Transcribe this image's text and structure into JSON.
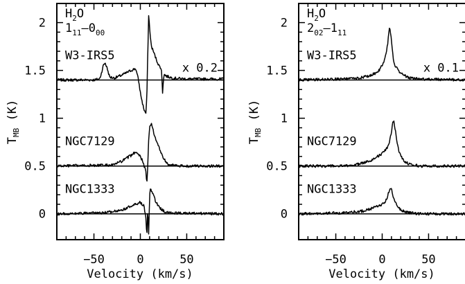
{
  "chart_data": [
    {
      "type": "line",
      "panel": "left",
      "molecule": {
        "main": "H",
        "sub": "2",
        "rest": "O"
      },
      "transition": {
        "j1": "1",
        "j1sub": "11",
        "dash": "–",
        "j2": "0",
        "j2sub": "00"
      },
      "xlabel": "Velocity (km/s)",
      "ylabel": {
        "main": "T",
        "sub": "MB",
        "unit": " (K)"
      },
      "xlim": [
        -90,
        90
      ],
      "ylim": [
        -0.27,
        2.2
      ],
      "xticks": [
        -50,
        0,
        50
      ],
      "xtick_labels": [
        "−50",
        "0",
        "50"
      ],
      "yticks": [
        0,
        0.5,
        1,
        1.5,
        2
      ],
      "ytick_labels": [
        "0",
        "0.5",
        "1",
        "1.5",
        "2"
      ],
      "series": [
        {
          "name": "W3-IRS5",
          "baseline": 1.4,
          "scale_label": "x 0.2",
          "x": [
            -90,
            -50,
            -44,
            -42,
            -40,
            -38,
            -36,
            -33,
            -28,
            -20,
            -10,
            -5,
            -2,
            0,
            2,
            4,
            6,
            7,
            8,
            9,
            10,
            11,
            12,
            14,
            17,
            20,
            22,
            23,
            24,
            25,
            26,
            28,
            35,
            50,
            90
          ],
          "y": [
            1.4,
            1.4,
            1.41,
            1.47,
            1.55,
            1.58,
            1.53,
            1.43,
            1.42,
            1.45,
            1.5,
            1.52,
            1.4,
            1.27,
            1.17,
            1.09,
            1.05,
            1.2,
            1.65,
            2.07,
            1.95,
            1.82,
            1.75,
            1.7,
            1.62,
            1.55,
            1.53,
            1.48,
            1.27,
            1.42,
            1.46,
            1.44,
            1.42,
            1.41,
            1.41
          ]
        },
        {
          "name": "NGC7129",
          "baseline": 0.5,
          "x": [
            -90,
            -30,
            -20,
            -10,
            -5,
            -2,
            0,
            2,
            4,
            6,
            7,
            8,
            9,
            10,
            12,
            14,
            16,
            20,
            25,
            30,
            40,
            90
          ],
          "y": [
            0.5,
            0.51,
            0.55,
            0.61,
            0.65,
            0.63,
            0.6,
            0.56,
            0.5,
            0.45,
            0.3,
            0.5,
            0.78,
            0.9,
            0.95,
            0.87,
            0.79,
            0.7,
            0.58,
            0.52,
            0.5,
            0.5
          ]
        },
        {
          "name": "NGC1333",
          "baseline": 0.0,
          "x": [
            -90,
            -40,
            -20,
            -10,
            -5,
            0,
            4,
            6,
            7,
            8,
            9,
            10,
            11,
            12,
            14,
            16,
            20,
            25,
            30,
            90
          ],
          "y": [
            0.0,
            0.01,
            0.04,
            0.08,
            0.1,
            0.12,
            0.08,
            -0.05,
            -0.25,
            0.05,
            -0.2,
            0.2,
            0.27,
            0.24,
            0.2,
            0.14,
            0.07,
            0.03,
            0.01,
            0.0
          ]
        }
      ]
    },
    {
      "type": "line",
      "panel": "right",
      "molecule": {
        "main": "H",
        "sub": "2",
        "rest": "O"
      },
      "transition": {
        "j1": "2",
        "j1sub": "02",
        "dash": "–",
        "j2": "1",
        "j2sub": "11"
      },
      "xlabel": "Velocity (km/s)",
      "ylabel": {
        "main": "T",
        "sub": "MB",
        "unit": " (K)"
      },
      "xlim": [
        -90,
        90
      ],
      "ylim": [
        -0.27,
        2.2
      ],
      "xticks": [
        -50,
        0,
        50
      ],
      "xtick_labels": [
        "−50",
        "0",
        "50"
      ],
      "yticks": [
        0,
        0.5,
        1,
        1.5,
        2
      ],
      "ytick_labels": [
        "0",
        "0.5",
        "1",
        "1.5",
        "2"
      ],
      "series": [
        {
          "name": "W3-IRS5",
          "baseline": 1.4,
          "scale_label": "x 0.1",
          "x": [
            -90,
            -40,
            -25,
            -15,
            -10,
            -5,
            -2,
            0,
            2,
            4,
            6,
            7,
            8,
            9,
            10,
            11,
            12,
            14,
            17,
            20,
            25,
            30,
            40,
            90
          ],
          "y": [
            1.4,
            1.41,
            1.42,
            1.44,
            1.46,
            1.48,
            1.52,
            1.56,
            1.6,
            1.66,
            1.78,
            1.88,
            1.94,
            1.9,
            1.8,
            1.7,
            1.62,
            1.55,
            1.5,
            1.47,
            1.44,
            1.42,
            1.41,
            1.4
          ]
        },
        {
          "name": "NGC7129",
          "baseline": 0.5,
          "x": [
            -90,
            -40,
            -25,
            -15,
            -10,
            -5,
            0,
            3,
            6,
            8,
            10,
            11,
            12,
            13,
            14,
            16,
            18,
            20,
            25,
            30,
            40,
            90
          ],
          "y": [
            0.5,
            0.5,
            0.52,
            0.55,
            0.57,
            0.6,
            0.63,
            0.66,
            0.7,
            0.76,
            0.86,
            0.94,
            0.97,
            0.95,
            0.88,
            0.76,
            0.66,
            0.6,
            0.54,
            0.52,
            0.5,
            0.5
          ]
        },
        {
          "name": "NGC1333",
          "baseline": 0.0,
          "x": [
            -90,
            -40,
            -20,
            -10,
            -5,
            0,
            3,
            5,
            7,
            8,
            9,
            10,
            11,
            12,
            14,
            16,
            18,
            22,
            30,
            40,
            90
          ],
          "y": [
            0.0,
            0.01,
            0.03,
            0.06,
            0.08,
            0.1,
            0.12,
            0.16,
            0.22,
            0.25,
            0.26,
            0.25,
            0.22,
            0.18,
            0.13,
            0.09,
            0.06,
            0.03,
            0.01,
            0.0,
            0.0
          ]
        }
      ]
    }
  ]
}
